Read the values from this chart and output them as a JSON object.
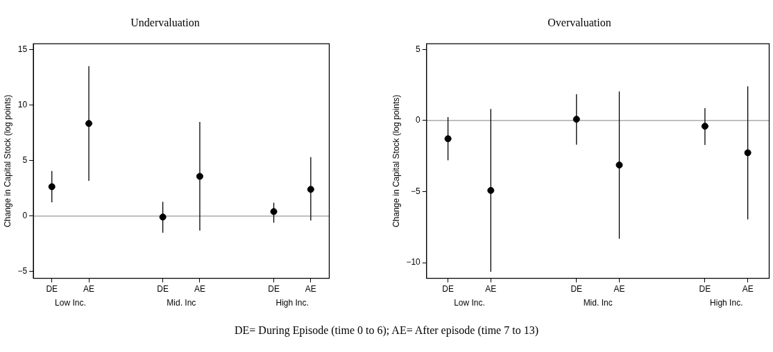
{
  "chart_data": [
    {
      "type": "scatter",
      "title": "Undervaluation",
      "ylabel": "Change in Capital Stock (log points)",
      "categories": [
        "DE",
        "AE",
        null,
        "DE",
        "AE",
        null,
        "DE",
        "AE"
      ],
      "ylim": [
        -5.6,
        15.5
      ],
      "yticks": [
        -5,
        0,
        5,
        10,
        15
      ],
      "grid": false,
      "legend": false,
      "marker": "circle",
      "ref_lines": [
        {
          "axis": "y",
          "value": 0,
          "color": "#999999"
        }
      ],
      "series": [
        {
          "color": "#000000",
          "values": [
            2.64,
            8.33,
            null,
            -0.09,
            3.57,
            null,
            0.4,
            2.4
          ],
          "errors": [
            [
              1.23,
              4.05
            ],
            [
              3.17,
              13.48
            ],
            null,
            [
              -1.5,
              1.28
            ],
            [
              -1.3,
              8.46
            ],
            null,
            [
              -0.6,
              1.2
            ],
            [
              -0.4,
              5.3
            ]
          ]
        }
      ],
      "annotations": [
        "Low Inc.",
        "Mid. Inc",
        "High Inc.",
        "DE= During Episode (time 0 to 6); AE= After episode (time 7 to 13)"
      ]
    },
    {
      "type": "scatter",
      "title": "Overvaluation",
      "ylabel": "Change in Capital Stock (log points)",
      "categories": [
        "DE",
        "AE",
        null,
        "DE",
        "AE",
        null,
        "DE",
        "AE"
      ],
      "ylim": [
        -11.1,
        5.4
      ],
      "yticks": [
        -10,
        -5,
        0,
        5
      ],
      "grid": false,
      "legend": false,
      "marker": "circle",
      "ref_lines": [
        {
          "axis": "y",
          "value": 0,
          "color": "#999999"
        }
      ],
      "series": [
        {
          "color": "#000000",
          "values": [
            -1.28,
            -4.92,
            null,
            0.09,
            -3.13,
            null,
            -0.4,
            -2.27
          ],
          "errors": [
            [
              -2.8,
              0.24
            ],
            [
              -10.65,
              0.82
            ],
            null,
            [
              -1.7,
              1.85
            ],
            [
              -8.32,
              2.05
            ],
            null,
            [
              -1.72,
              0.88
            ],
            [
              -6.96,
              2.41
            ]
          ]
        }
      ],
      "annotations": [
        "Low Inc.",
        "Mid. Inc",
        "High Inc."
      ]
    }
  ]
}
